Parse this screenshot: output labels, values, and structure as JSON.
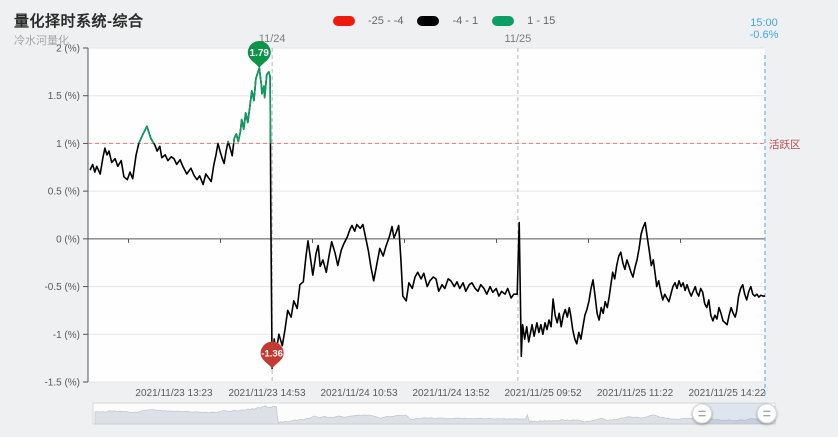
{
  "header": {
    "title": "量化择时系统-综合",
    "subtitle": "冷水河量化"
  },
  "legend": {
    "items": [
      {
        "label": "-25 - -4",
        "color": "#ee1a0e"
      },
      {
        "label": "-4 - 1",
        "color": "#000000"
      },
      {
        "label": "1 - 15",
        "color": "#0c9e62"
      }
    ]
  },
  "current": {
    "time": "15:00",
    "change": "-0.6%",
    "color": "#41a7f0"
  },
  "chart_data": {
    "type": "line",
    "title": "量化择时系统-综合",
    "subtitle": "冷水河量化",
    "ylim": [
      -1.5,
      2
    ],
    "grid": true,
    "legend_position": "top",
    "y_ticks": [
      "2 (%)",
      "1.5 (%)",
      "1 (%)",
      "0.5 (%)",
      "0 (%)",
      "-0.5 (%)",
      "-1 (%)",
      "-1.5 (%)"
    ],
    "y_tick_values": [
      2,
      1.5,
      1,
      0.5,
      0,
      -0.5,
      -1,
      -1.5
    ],
    "x_ticks": [
      "2021/11/23 13:23",
      "2021/11/23 14:53",
      "2021/11/24 10:53",
      "2021/11/24 13:52",
      "2021/11/25 09:52",
      "2021/11/25 11:22",
      "2021/11/25 14:22"
    ],
    "x_tick_f": [
      0.127,
      0.2644,
      0.4003,
      0.5362,
      0.6721,
      0.808,
      0.9439
    ],
    "axis_boundary_tick_f": [
      0.0598,
      0.1957,
      0.3316,
      0.4675,
      0.6034,
      0.7393,
      0.8752
    ],
    "day_dividers": [
      {
        "label": "11/24",
        "f": 0.272
      },
      {
        "label": "11/25",
        "f": 0.635
      }
    ],
    "threshold_line": {
      "value": 1,
      "label": "活跃区",
      "line_color": "#e08b8b"
    },
    "now_line": {
      "f": 1.0,
      "color": "#6ab5f2",
      "time": "15:00",
      "value": "-0.6%"
    },
    "visual_pieces": [
      {
        "range": "-25 - -4",
        "color": "#ee1a0e"
      },
      {
        "range": "-4 - 1",
        "color": "#000000"
      },
      {
        "range": "1 - 15",
        "color": "#0c9e62"
      }
    ],
    "markers": [
      {
        "type": "max",
        "label": "1.79",
        "value": 1.79,
        "f": 0.253,
        "color": "#0d9447"
      },
      {
        "type": "min",
        "label": "-1.36",
        "value": -1.36,
        "f": 0.272,
        "color": "#c43a31"
      }
    ],
    "series": [
      {
        "name": "综合",
        "unit": "%",
        "points": [
          [
            0.003,
            0.72
          ],
          [
            0.007,
            0.78
          ],
          [
            0.01,
            0.7
          ],
          [
            0.013,
            0.76
          ],
          [
            0.018,
            0.68
          ],
          [
            0.022,
            0.85
          ],
          [
            0.025,
            0.95
          ],
          [
            0.028,
            0.88
          ],
          [
            0.031,
            0.92
          ],
          [
            0.035,
            0.8
          ],
          [
            0.04,
            0.84
          ],
          [
            0.044,
            0.76
          ],
          [
            0.049,
            0.82
          ],
          [
            0.053,
            0.65
          ],
          [
            0.058,
            0.62
          ],
          [
            0.062,
            0.7
          ],
          [
            0.066,
            0.63
          ],
          [
            0.071,
            0.88
          ],
          [
            0.075,
            1.0
          ],
          [
            0.08,
            1.08
          ],
          [
            0.087,
            1.18
          ],
          [
            0.093,
            1.05
          ],
          [
            0.099,
            0.98
          ],
          [
            0.102,
            0.92
          ],
          [
            0.106,
            0.97
          ],
          [
            0.109,
            0.85
          ],
          [
            0.114,
            0.88
          ],
          [
            0.118,
            0.82
          ],
          [
            0.123,
            0.86
          ],
          [
            0.127,
            0.84
          ],
          [
            0.131,
            0.78
          ],
          [
            0.136,
            0.83
          ],
          [
            0.14,
            0.76
          ],
          [
            0.146,
            0.68
          ],
          [
            0.152,
            0.74
          ],
          [
            0.157,
            0.66
          ],
          [
            0.161,
            0.62
          ],
          [
            0.165,
            0.66
          ],
          [
            0.17,
            0.57
          ],
          [
            0.174,
            0.68
          ],
          [
            0.179,
            0.63
          ],
          [
            0.182,
            0.6
          ],
          [
            0.186,
            0.78
          ],
          [
            0.189,
            0.88
          ],
          [
            0.192,
            1.0
          ],
          [
            0.195,
            0.92
          ],
          [
            0.198,
            0.85
          ],
          [
            0.201,
            0.79
          ],
          [
            0.204,
            0.92
          ],
          [
            0.207,
            1.02
          ],
          [
            0.21,
            0.95
          ],
          [
            0.213,
            0.87
          ],
          [
            0.216,
            1.05
          ],
          [
            0.219,
            1.1
          ],
          [
            0.222,
            1.02
          ],
          [
            0.225,
            1.12
          ],
          [
            0.227,
            1.25
          ],
          [
            0.23,
            1.15
          ],
          [
            0.233,
            1.32
          ],
          [
            0.236,
            1.22
          ],
          [
            0.239,
            1.38
          ],
          [
            0.242,
            1.55
          ],
          [
            0.245,
            1.45
          ],
          [
            0.248,
            1.68
          ],
          [
            0.253,
            1.79
          ],
          [
            0.256,
            1.62
          ],
          [
            0.257,
            1.52
          ],
          [
            0.26,
            1.6
          ],
          [
            0.261,
            1.48
          ],
          [
            0.264,
            1.72
          ],
          [
            0.267,
            1.75
          ],
          [
            0.269,
            1.7
          ],
          [
            0.27,
            0.3
          ],
          [
            0.272,
            -1.36
          ],
          [
            0.275,
            -1.05
          ],
          [
            0.278,
            -1.18
          ],
          [
            0.282,
            -1.0
          ],
          [
            0.287,
            -1.12
          ],
          [
            0.291,
            -0.95
          ],
          [
            0.295,
            -0.75
          ],
          [
            0.3,
            -0.82
          ],
          [
            0.304,
            -0.65
          ],
          [
            0.309,
            -0.73
          ],
          [
            0.313,
            -0.48
          ],
          [
            0.318,
            -0.45
          ],
          [
            0.322,
            -0.18
          ],
          [
            0.325,
            -0.02
          ],
          [
            0.329,
            -0.22
          ],
          [
            0.332,
            -0.38
          ],
          [
            0.337,
            -0.15
          ],
          [
            0.34,
            -0.07
          ],
          [
            0.343,
            -0.29
          ],
          [
            0.347,
            -0.22
          ],
          [
            0.352,
            -0.35
          ],
          [
            0.356,
            -0.18
          ],
          [
            0.36,
            -0.03
          ],
          [
            0.365,
            -0.15
          ],
          [
            0.369,
            -0.28
          ],
          [
            0.374,
            -0.12
          ],
          [
            0.378,
            -0.05
          ],
          [
            0.383,
            0.02
          ],
          [
            0.387,
            0.1
          ],
          [
            0.39,
            0.14
          ],
          [
            0.394,
            0.08
          ],
          [
            0.397,
            0.15
          ],
          [
            0.402,
            0.11
          ],
          [
            0.406,
            0.15
          ],
          [
            0.409,
            0.05
          ],
          [
            0.414,
            -0.12
          ],
          [
            0.418,
            -0.3
          ],
          [
            0.422,
            -0.44
          ],
          [
            0.427,
            -0.25
          ],
          [
            0.431,
            -0.1
          ],
          [
            0.436,
            -0.18
          ],
          [
            0.44,
            -0.08
          ],
          [
            0.445,
            0.02
          ],
          [
            0.449,
            0.13
          ],
          [
            0.452,
            0.01
          ],
          [
            0.456,
            0.08
          ],
          [
            0.459,
            0.14
          ],
          [
            0.462,
            -0.2
          ],
          [
            0.465,
            -0.6
          ],
          [
            0.47,
            -0.65
          ],
          [
            0.474,
            -0.46
          ],
          [
            0.479,
            -0.52
          ],
          [
            0.483,
            -0.4
          ],
          [
            0.487,
            -0.35
          ],
          [
            0.492,
            -0.42
          ],
          [
            0.496,
            -0.36
          ],
          [
            0.501,
            -0.5
          ],
          [
            0.505,
            -0.44
          ],
          [
            0.51,
            -0.4
          ],
          [
            0.514,
            -0.42
          ],
          [
            0.518,
            -0.55
          ],
          [
            0.523,
            -0.48
          ],
          [
            0.527,
            -0.52
          ],
          [
            0.532,
            -0.42
          ],
          [
            0.536,
            -0.44
          ],
          [
            0.541,
            -0.5
          ],
          [
            0.545,
            -0.45
          ],
          [
            0.549,
            -0.52
          ],
          [
            0.554,
            -0.46
          ],
          [
            0.558,
            -0.55
          ],
          [
            0.563,
            -0.48
          ],
          [
            0.567,
            -0.46
          ],
          [
            0.572,
            -0.52
          ],
          [
            0.576,
            -0.55
          ],
          [
            0.58,
            -0.48
          ],
          [
            0.585,
            -0.52
          ],
          [
            0.589,
            -0.58
          ],
          [
            0.594,
            -0.5
          ],
          [
            0.598,
            -0.56
          ],
          [
            0.603,
            -0.52
          ],
          [
            0.607,
            -0.6
          ],
          [
            0.611,
            -0.55
          ],
          [
            0.616,
            -0.58
          ],
          [
            0.62,
            -0.52
          ],
          [
            0.625,
            -0.62
          ],
          [
            0.629,
            -0.58
          ],
          [
            0.634,
            -0.58
          ],
          [
            0.637,
            0.17
          ],
          [
            0.64,
            -1.23
          ],
          [
            0.642,
            -0.9
          ],
          [
            0.645,
            -1.05
          ],
          [
            0.648,
            -0.92
          ],
          [
            0.651,
            -1.08
          ],
          [
            0.656,
            -0.9
          ],
          [
            0.659,
            -1.02
          ],
          [
            0.663,
            -0.88
          ],
          [
            0.666,
            -0.98
          ],
          [
            0.669,
            -0.9
          ],
          [
            0.672,
            -1.0
          ],
          [
            0.675,
            -0.88
          ],
          [
            0.678,
            -0.95
          ],
          [
            0.681,
            -0.85
          ],
          [
            0.684,
            -0.92
          ],
          [
            0.687,
            -0.63
          ],
          [
            0.69,
            -0.8
          ],
          [
            0.693,
            -0.88
          ],
          [
            0.696,
            -0.78
          ],
          [
            0.699,
            -0.92
          ],
          [
            0.702,
            -0.8
          ],
          [
            0.705,
            -0.74
          ],
          [
            0.708,
            -0.82
          ],
          [
            0.711,
            -0.72
          ],
          [
            0.713,
            -0.8
          ],
          [
            0.716,
            -0.95
          ],
          [
            0.719,
            -1.05
          ],
          [
            0.722,
            -1.1
          ],
          [
            0.725,
            -0.98
          ],
          [
            0.728,
            -1.05
          ],
          [
            0.731,
            -0.92
          ],
          [
            0.734,
            -0.8
          ],
          [
            0.737,
            -0.74
          ],
          [
            0.74,
            -0.65
          ],
          [
            0.743,
            -0.52
          ],
          [
            0.746,
            -0.43
          ],
          [
            0.749,
            -0.6
          ],
          [
            0.752,
            -0.78
          ],
          [
            0.755,
            -0.85
          ],
          [
            0.758,
            -0.72
          ],
          [
            0.761,
            -0.78
          ],
          [
            0.764,
            -0.66
          ],
          [
            0.767,
            -0.72
          ],
          [
            0.77,
            -0.6
          ],
          [
            0.772,
            -0.5
          ],
          [
            0.775,
            -0.35
          ],
          [
            0.778,
            -0.42
          ],
          [
            0.781,
            -0.28
          ],
          [
            0.784,
            -0.18
          ],
          [
            0.787,
            -0.14
          ],
          [
            0.79,
            -0.25
          ],
          [
            0.793,
            -0.32
          ],
          [
            0.796,
            -0.22
          ],
          [
            0.799,
            -0.28
          ],
          [
            0.802,
            -0.35
          ],
          [
            0.805,
            -0.4
          ],
          [
            0.808,
            -0.3
          ],
          [
            0.811,
            -0.22
          ],
          [
            0.814,
            -0.1
          ],
          [
            0.817,
            0.05
          ],
          [
            0.82,
            0.12
          ],
          [
            0.823,
            0.17
          ],
          [
            0.826,
            0.02
          ],
          [
            0.829,
            -0.12
          ],
          [
            0.832,
            -0.28
          ],
          [
            0.835,
            -0.22
          ],
          [
            0.838,
            -0.38
          ],
          [
            0.84,
            -0.5
          ],
          [
            0.843,
            -0.44
          ],
          [
            0.846,
            -0.55
          ],
          [
            0.849,
            -0.64
          ],
          [
            0.852,
            -0.58
          ],
          [
            0.855,
            -0.62
          ],
          [
            0.858,
            -0.66
          ],
          [
            0.861,
            -0.58
          ],
          [
            0.864,
            -0.5
          ],
          [
            0.867,
            -0.46
          ],
          [
            0.87,
            -0.52
          ],
          [
            0.873,
            -0.44
          ],
          [
            0.876,
            -0.5
          ],
          [
            0.879,
            -0.46
          ],
          [
            0.882,
            -0.54
          ],
          [
            0.885,
            -0.48
          ],
          [
            0.888,
            -0.55
          ],
          [
            0.891,
            -0.6
          ],
          [
            0.894,
            -0.55
          ],
          [
            0.897,
            -0.5
          ],
          [
            0.899,
            -0.56
          ],
          [
            0.902,
            -0.6
          ],
          [
            0.905,
            -0.52
          ],
          [
            0.908,
            -0.56
          ],
          [
            0.911,
            -0.68
          ],
          [
            0.914,
            -0.72
          ],
          [
            0.917,
            -0.64
          ],
          [
            0.92,
            -0.8
          ],
          [
            0.923,
            -0.86
          ],
          [
            0.926,
            -0.8
          ],
          [
            0.929,
            -0.84
          ],
          [
            0.932,
            -0.72
          ],
          [
            0.935,
            -0.78
          ],
          [
            0.938,
            -0.86
          ],
          [
            0.941,
            -0.88
          ],
          [
            0.944,
            -0.9
          ],
          [
            0.947,
            -0.8
          ],
          [
            0.95,
            -0.72
          ],
          [
            0.953,
            -0.78
          ],
          [
            0.956,
            -0.82
          ],
          [
            0.958,
            -0.76
          ],
          [
            0.961,
            -0.6
          ],
          [
            0.964,
            -0.52
          ],
          [
            0.967,
            -0.48
          ],
          [
            0.97,
            -0.58
          ],
          [
            0.973,
            -0.64
          ],
          [
            0.976,
            -0.55
          ],
          [
            0.979,
            -0.5
          ],
          [
            0.982,
            -0.58
          ],
          [
            0.985,
            -0.6
          ],
          [
            0.988,
            -0.58
          ],
          [
            0.991,
            -0.61
          ],
          [
            0.994,
            -0.59
          ],
          [
            0.997,
            -0.6
          ],
          [
            1.0,
            -0.6
          ]
        ]
      }
    ]
  },
  "navigator": {
    "window": [
      0.893,
      0.988
    ],
    "handle_glyph": "≡"
  }
}
